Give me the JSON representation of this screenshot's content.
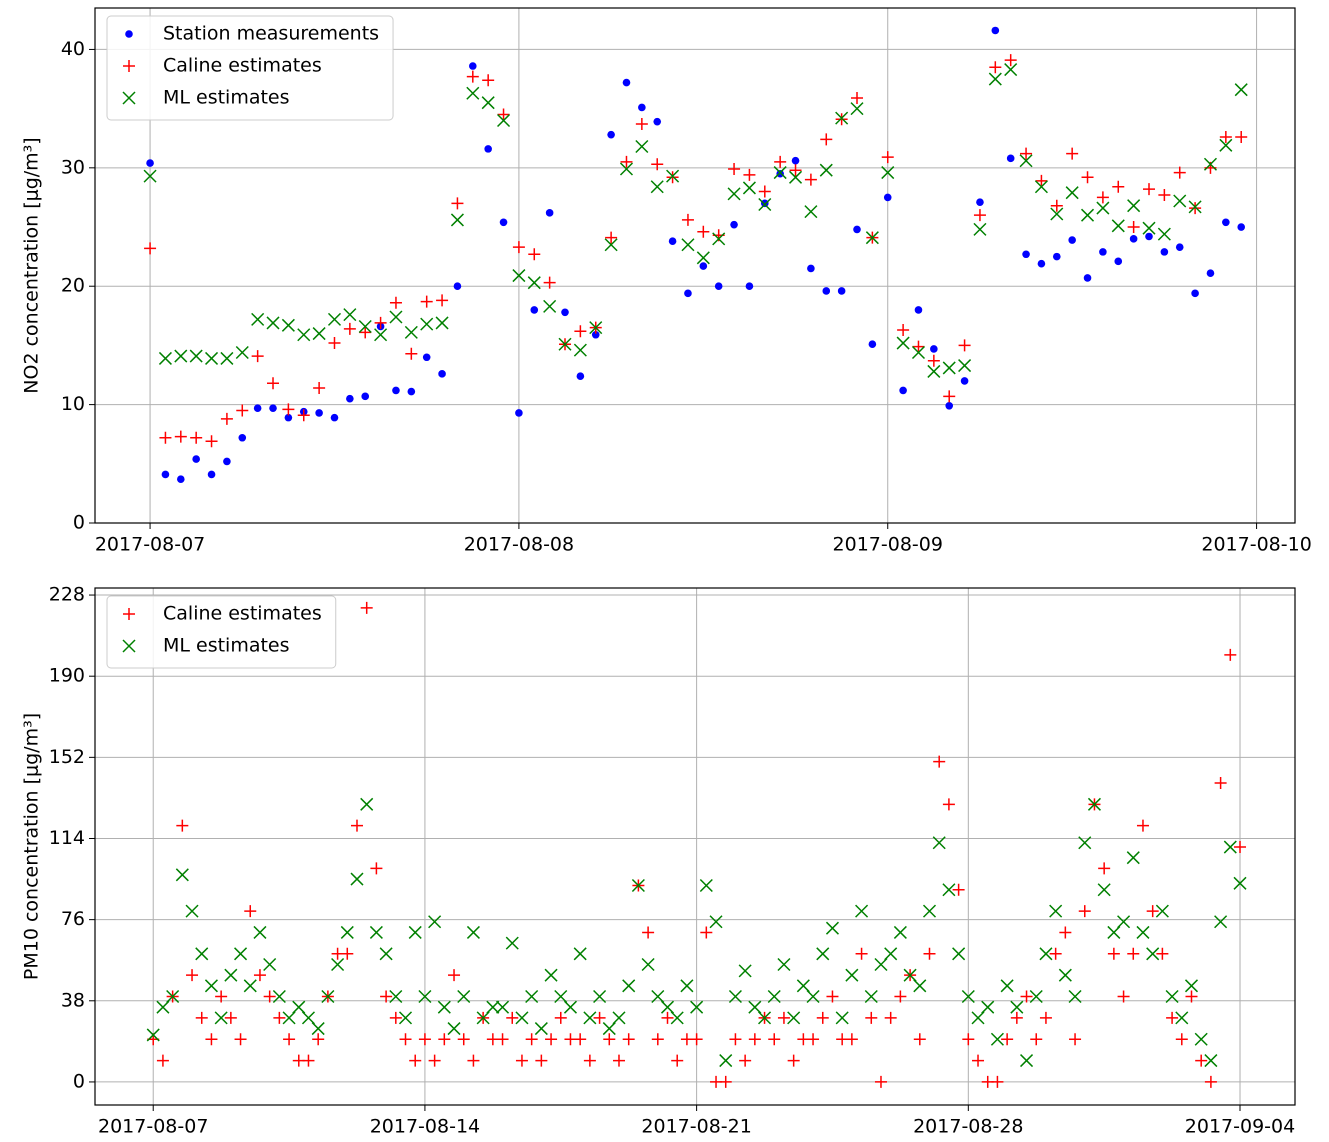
{
  "chart_data": [
    {
      "type": "scatter",
      "ylabel": "NO2 concentration [μg/m³]",
      "legend": "upper left",
      "grid": true,
      "xlim": [
        "2017-08-06 20:25",
        "2017-08-10 02:30"
      ],
      "xticks": [
        "2017-08-07",
        "2017-08-08",
        "2017-08-09",
        "2017-08-10"
      ],
      "ylim": [
        0,
        43.5
      ],
      "yticks": [
        0,
        10,
        20,
        30,
        40
      ],
      "x": [
        "2017-08-07 00:00",
        "2017-08-07 01:00",
        "2017-08-07 02:00",
        "2017-08-07 03:00",
        "2017-08-07 04:00",
        "2017-08-07 05:00",
        "2017-08-07 06:00",
        "2017-08-07 07:00",
        "2017-08-07 08:00",
        "2017-08-07 09:00",
        "2017-08-07 10:00",
        "2017-08-07 11:00",
        "2017-08-07 12:00",
        "2017-08-07 13:00",
        "2017-08-07 14:00",
        "2017-08-07 15:00",
        "2017-08-07 16:00",
        "2017-08-07 17:00",
        "2017-08-07 18:00",
        "2017-08-07 19:00",
        "2017-08-07 20:00",
        "2017-08-07 21:00",
        "2017-08-07 22:00",
        "2017-08-07 23:00",
        "2017-08-08 00:00",
        "2017-08-08 01:00",
        "2017-08-08 02:00",
        "2017-08-08 03:00",
        "2017-08-08 04:00",
        "2017-08-08 05:00",
        "2017-08-08 06:00",
        "2017-08-08 07:00",
        "2017-08-08 08:00",
        "2017-08-08 09:00",
        "2017-08-08 10:00",
        "2017-08-08 11:00",
        "2017-08-08 12:00",
        "2017-08-08 13:00",
        "2017-08-08 14:00",
        "2017-08-08 15:00",
        "2017-08-08 16:00",
        "2017-08-08 17:00",
        "2017-08-08 18:00",
        "2017-08-08 19:00",
        "2017-08-08 20:00",
        "2017-08-08 21:00",
        "2017-08-08 22:00",
        "2017-08-08 23:00",
        "2017-08-09 00:00",
        "2017-08-09 01:00",
        "2017-08-09 02:00",
        "2017-08-09 03:00",
        "2017-08-09 04:00",
        "2017-08-09 05:00",
        "2017-08-09 06:00",
        "2017-08-09 07:00",
        "2017-08-09 08:00",
        "2017-08-09 09:00",
        "2017-08-09 10:00",
        "2017-08-09 11:00",
        "2017-08-09 12:00",
        "2017-08-09 13:00",
        "2017-08-09 14:00",
        "2017-08-09 15:00",
        "2017-08-09 16:00",
        "2017-08-09 17:00",
        "2017-08-09 18:00",
        "2017-08-09 19:00",
        "2017-08-09 20:00",
        "2017-08-09 21:00",
        "2017-08-09 22:00",
        "2017-08-09 23:00"
      ],
      "series": [
        {
          "name": "Station measurements",
          "marker": "o",
          "color": "#0000ff",
          "values": [
            30.4,
            4.1,
            3.7,
            5.4,
            4.1,
            5.2,
            7.2,
            9.7,
            9.7,
            8.9,
            9.4,
            9.3,
            8.9,
            10.5,
            10.7,
            16.6,
            11.2,
            11.1,
            14.0,
            12.6,
            20.0,
            38.6,
            31.6,
            25.4,
            9.3,
            18.0,
            26.2,
            17.8,
            12.4,
            15.9,
            32.8,
            37.2,
            35.1,
            33.9,
            23.8,
            19.4,
            21.7,
            20.0,
            25.2,
            20.0,
            27.0,
            29.5,
            30.6,
            21.5,
            19.6,
            19.6,
            24.8,
            15.1,
            27.5,
            11.2,
            18.0,
            14.7,
            9.9,
            12.0,
            27.1,
            41.6,
            30.8,
            22.7,
            21.9,
            22.5,
            23.9,
            20.7,
            22.9,
            22.1,
            24.0,
            24.2,
            22.9,
            23.3,
            19.4,
            21.1,
            25.4,
            25.0
          ]
        },
        {
          "name": "Caline estimates",
          "marker": "+",
          "color": "#ff0000",
          "values": [
            23.2,
            7.2,
            7.3,
            7.2,
            6.9,
            8.8,
            9.5,
            14.1,
            11.8,
            9.6,
            9.1,
            11.4,
            15.2,
            16.4,
            16.1,
            16.9,
            18.6,
            14.3,
            18.7,
            18.8,
            27.0,
            37.7,
            37.4,
            34.5,
            23.3,
            22.7,
            20.3,
            15.1,
            16.2,
            16.5,
            24.1,
            30.5,
            33.7,
            30.3,
            29.2,
            25.6,
            24.6,
            24.3,
            29.9,
            29.4,
            28.0,
            30.5,
            29.8,
            29.0,
            32.4,
            34.1,
            35.9,
            24.1,
            30.9,
            16.3,
            14.9,
            13.7,
            10.7,
            15.0,
            26.0,
            38.5,
            39.1,
            31.2,
            28.9,
            26.8,
            31.2,
            29.2,
            27.5,
            28.4,
            25.0,
            28.2,
            27.7,
            29.6,
            26.6,
            30.0,
            32.6,
            32.6
          ]
        },
        {
          "name": "ML estimates",
          "marker": "x",
          "color": "#008000",
          "values": [
            29.3,
            13.9,
            14.1,
            14.1,
            13.9,
            13.9,
            14.4,
            17.2,
            16.9,
            16.7,
            15.9,
            16.0,
            17.2,
            17.6,
            16.6,
            15.9,
            17.4,
            16.1,
            16.8,
            16.9,
            25.6,
            36.3,
            35.5,
            34.0,
            20.9,
            20.3,
            18.3,
            15.1,
            14.6,
            16.5,
            23.5,
            29.9,
            31.8,
            28.4,
            29.3,
            23.5,
            22.4,
            24.0,
            27.8,
            28.3,
            26.9,
            29.6,
            29.2,
            26.3,
            29.8,
            34.2,
            35.0,
            24.1,
            29.6,
            15.2,
            14.4,
            12.8,
            13.1,
            13.3,
            24.8,
            37.5,
            38.3,
            30.6,
            28.4,
            26.1,
            27.9,
            26.0,
            26.6,
            25.1,
            26.8,
            24.9,
            24.4,
            27.2,
            26.7,
            30.3,
            31.9,
            36.6
          ]
        }
      ]
    },
    {
      "type": "scatter",
      "ylabel": "PM10 concentration [μg/m³]",
      "legend": "upper left",
      "grid": true,
      "xlim": [
        "2017-08-05 12:00",
        "2017-09-05 10:00"
      ],
      "xticks": [
        "2017-08-07",
        "2017-08-14",
        "2017-08-21",
        "2017-08-28",
        "2017-09-04"
      ],
      "ylim": [
        -10.8,
        231.3
      ],
      "yticks": [
        0,
        38,
        76,
        114,
        152,
        190,
        228
      ],
      "x": [
        "2017-08-07 00:00",
        "2017-08-07 06:00",
        "2017-08-07 12:00",
        "2017-08-07 18:00",
        "2017-08-08 00:00",
        "2017-08-08 06:00",
        "2017-08-08 12:00",
        "2017-08-08 18:00",
        "2017-08-09 00:00",
        "2017-08-09 06:00",
        "2017-08-09 12:00",
        "2017-08-09 18:00",
        "2017-08-10 00:00",
        "2017-08-10 06:00",
        "2017-08-10 12:00",
        "2017-08-10 18:00",
        "2017-08-11 00:00",
        "2017-08-11 06:00",
        "2017-08-11 12:00",
        "2017-08-11 18:00",
        "2017-08-12 00:00",
        "2017-08-12 06:00",
        "2017-08-12 12:00",
        "2017-08-12 18:00",
        "2017-08-13 00:00",
        "2017-08-13 06:00",
        "2017-08-13 12:00",
        "2017-08-13 18:00",
        "2017-08-14 00:00",
        "2017-08-14 06:00",
        "2017-08-14 12:00",
        "2017-08-14 18:00",
        "2017-08-15 00:00",
        "2017-08-15 06:00",
        "2017-08-15 12:00",
        "2017-08-15 18:00",
        "2017-08-16 00:00",
        "2017-08-16 06:00",
        "2017-08-16 12:00",
        "2017-08-16 18:00",
        "2017-08-17 00:00",
        "2017-08-17 06:00",
        "2017-08-17 12:00",
        "2017-08-17 18:00",
        "2017-08-18 00:00",
        "2017-08-18 06:00",
        "2017-08-18 12:00",
        "2017-08-18 18:00",
        "2017-08-19 00:00",
        "2017-08-19 06:00",
        "2017-08-19 12:00",
        "2017-08-19 18:00",
        "2017-08-20 00:00",
        "2017-08-20 06:00",
        "2017-08-20 12:00",
        "2017-08-20 18:00",
        "2017-08-21 00:00",
        "2017-08-21 06:00",
        "2017-08-21 12:00",
        "2017-08-21 18:00",
        "2017-08-22 00:00",
        "2017-08-22 06:00",
        "2017-08-22 12:00",
        "2017-08-22 18:00",
        "2017-08-23 00:00",
        "2017-08-23 06:00",
        "2017-08-23 12:00",
        "2017-08-23 18:00",
        "2017-08-24 00:00",
        "2017-08-24 06:00",
        "2017-08-24 12:00",
        "2017-08-24 18:00",
        "2017-08-25 00:00",
        "2017-08-25 06:00",
        "2017-08-25 12:00",
        "2017-08-25 18:00",
        "2017-08-26 00:00",
        "2017-08-26 06:00",
        "2017-08-26 12:00",
        "2017-08-26 18:00",
        "2017-08-27 00:00",
        "2017-08-27 06:00",
        "2017-08-27 12:00",
        "2017-08-27 18:00",
        "2017-08-28 00:00",
        "2017-08-28 06:00",
        "2017-08-28 12:00",
        "2017-08-28 18:00",
        "2017-08-29 00:00",
        "2017-08-29 06:00",
        "2017-08-29 12:00",
        "2017-08-29 18:00",
        "2017-08-30 00:00",
        "2017-08-30 06:00",
        "2017-08-30 12:00",
        "2017-08-30 18:00",
        "2017-08-31 00:00",
        "2017-08-31 06:00",
        "2017-08-31 12:00",
        "2017-08-31 18:00",
        "2017-09-01 00:00",
        "2017-09-01 06:00",
        "2017-09-01 12:00",
        "2017-09-01 18:00",
        "2017-09-02 00:00",
        "2017-09-02 06:00",
        "2017-09-02 12:00",
        "2017-09-02 18:00",
        "2017-09-03 00:00",
        "2017-09-03 06:00",
        "2017-09-03 12:00",
        "2017-09-03 18:00",
        "2017-09-04 00:00"
      ],
      "series": [
        {
          "name": "Caline estimates",
          "marker": "+",
          "color": "#ff0000",
          "values": [
            20,
            10,
            40,
            120,
            50,
            30,
            20,
            40,
            30,
            20,
            80,
            50,
            40,
            30,
            20,
            10,
            10,
            20,
            40,
            60,
            60,
            120,
            222,
            100,
            40,
            30,
            20,
            10,
            20,
            10,
            20,
            50,
            20,
            10,
            30,
            20,
            20,
            30,
            10,
            20,
            10,
            20,
            30,
            20,
            20,
            10,
            30,
            20,
            10,
            20,
            92,
            70,
            20,
            30,
            10,
            20,
            20,
            70,
            0,
            0,
            20,
            10,
            20,
            30,
            20,
            30,
            10,
            20,
            20,
            30,
            40,
            20,
            20,
            60,
            30,
            0,
            30,
            40,
            50,
            20,
            60,
            150,
            130,
            90,
            20,
            10,
            0,
            0,
            20,
            30,
            40,
            20,
            30,
            60,
            70,
            20,
            80,
            130,
            100,
            60,
            40,
            60,
            120,
            80,
            60,
            30,
            20,
            40,
            10,
            0,
            140,
            200,
            110
          ]
        },
        {
          "name": "ML estimates",
          "marker": "x",
          "color": "#008000",
          "values": [
            22,
            35,
            40,
            97,
            80,
            60,
            45,
            30,
            50,
            60,
            45,
            70,
            55,
            40,
            30,
            35,
            30,
            25,
            40,
            55,
            70,
            95,
            130,
            70,
            60,
            40,
            30,
            70,
            40,
            75,
            35,
            25,
            40,
            70,
            30,
            35,
            35,
            65,
            30,
            40,
            25,
            50,
            40,
            35,
            60,
            30,
            40,
            25,
            30,
            45,
            92,
            55,
            40,
            35,
            30,
            45,
            35,
            92,
            75,
            10,
            40,
            52,
            35,
            30,
            40,
            55,
            30,
            45,
            40,
            60,
            72,
            30,
            50,
            80,
            40,
            55,
            60,
            70,
            50,
            45,
            80,
            112,
            90,
            60,
            40,
            30,
            35,
            20,
            45,
            35,
            10,
            40,
            60,
            80,
            50,
            40,
            112,
            130,
            90,
            70,
            75,
            105,
            70,
            60,
            80,
            40,
            30,
            45,
            20,
            10,
            75,
            110,
            93
          ]
        }
      ]
    }
  ]
}
